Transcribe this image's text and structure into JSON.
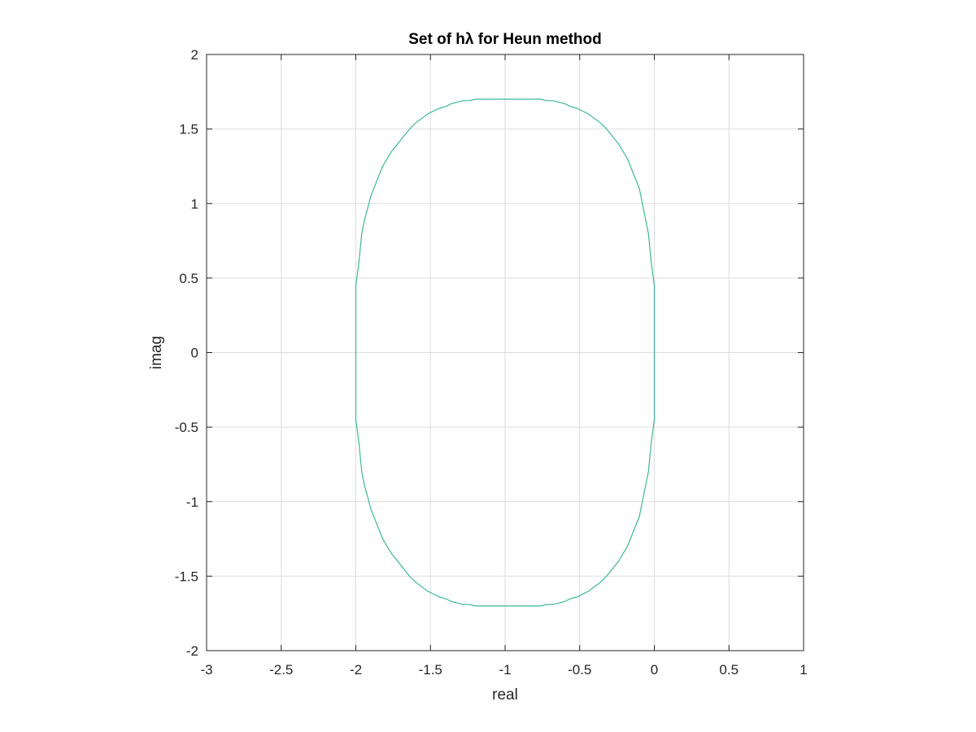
{
  "chart_data": {
    "type": "line",
    "title": "Set of hλ for Heun method",
    "xlabel": "real",
    "ylabel": "imag",
    "xlim": [
      -3,
      1
    ],
    "ylim": [
      -2,
      2
    ],
    "x_ticks": [
      -3,
      -2.5,
      -2,
      -1.5,
      -1,
      -0.5,
      0,
      0.5,
      1
    ],
    "y_ticks": [
      -2,
      -1.5,
      -1,
      -0.5,
      0,
      0.5,
      1,
      1.5,
      2
    ],
    "x_tick_labels": [
      "-3",
      "-2.5",
      "-2",
      "-1.5",
      "-1",
      "-0.5",
      "0",
      "0.5",
      "1"
    ],
    "y_tick_labels": [
      "-2",
      "-1.5",
      "-1",
      "-0.5",
      "0",
      "0.5",
      "1",
      "1.5",
      "2"
    ],
    "grid": true,
    "series": [
      {
        "color": "#3cb89a",
        "x": [
          0.0,
          -0.02,
          -0.03,
          -0.04,
          -0.06,
          -0.08,
          -0.1,
          -0.14,
          -0.18,
          -0.24,
          -0.28,
          -0.32,
          -0.36,
          -0.4,
          -0.44,
          -0.48,
          -0.52,
          -0.56,
          -0.6,
          -0.64,
          -0.68,
          -0.72,
          -0.76,
          -0.8,
          -1.0,
          -1.2,
          -1.24,
          -1.28,
          -1.32,
          -1.36,
          -1.4,
          -1.44,
          -1.48,
          -1.52,
          -1.56,
          -1.6,
          -1.64,
          -1.68,
          -1.72,
          -1.76,
          -1.82,
          -1.86,
          -1.9,
          -1.92,
          -1.94,
          -1.96,
          -1.97,
          -1.98,
          -2.0,
          -2.0,
          -1.98,
          -1.97,
          -1.96,
          -1.94,
          -1.92,
          -1.9,
          -1.86,
          -1.82,
          -1.76,
          -1.72,
          -1.68,
          -1.64,
          -1.6,
          -1.56,
          -1.52,
          -1.48,
          -1.44,
          -1.4,
          -1.36,
          -1.32,
          -1.28,
          -1.24,
          -1.2,
          -1.0,
          -0.8,
          -0.76,
          -0.72,
          -0.68,
          -0.64,
          -0.6,
          -0.56,
          -0.52,
          -0.48,
          -0.44,
          -0.4,
          -0.36,
          -0.32,
          -0.28,
          -0.24,
          -0.18,
          -0.14,
          -0.1,
          -0.08,
          -0.06,
          -0.04,
          -0.03,
          -0.02,
          0.0,
          0.0
        ],
        "y": [
          0.45,
          0.6,
          0.7,
          0.8,
          0.9,
          1.0,
          1.1,
          1.2,
          1.3,
          1.4,
          1.45,
          1.5,
          1.54,
          1.57,
          1.6,
          1.62,
          1.64,
          1.65,
          1.67,
          1.68,
          1.69,
          1.69,
          1.7,
          1.7,
          1.7,
          1.7,
          1.69,
          1.69,
          1.68,
          1.67,
          1.65,
          1.64,
          1.62,
          1.6,
          1.57,
          1.54,
          1.5,
          1.45,
          1.4,
          1.35,
          1.25,
          1.15,
          1.05,
          0.97,
          0.9,
          0.8,
          0.7,
          0.6,
          0.45,
          -0.45,
          -0.6,
          -0.7,
          -0.8,
          -0.9,
          -0.97,
          -1.05,
          -1.15,
          -1.25,
          -1.35,
          -1.4,
          -1.45,
          -1.5,
          -1.54,
          -1.57,
          -1.6,
          -1.62,
          -1.64,
          -1.65,
          -1.67,
          -1.68,
          -1.69,
          -1.69,
          -1.7,
          -1.7,
          -1.7,
          -1.7,
          -1.69,
          -1.69,
          -1.68,
          -1.67,
          -1.65,
          -1.64,
          -1.62,
          -1.6,
          -1.57,
          -1.54,
          -1.5,
          -1.45,
          -1.4,
          -1.3,
          -1.2,
          -1.1,
          -1.0,
          -0.9,
          -0.8,
          -0.7,
          -0.6,
          -0.45,
          0.45
        ]
      }
    ]
  }
}
